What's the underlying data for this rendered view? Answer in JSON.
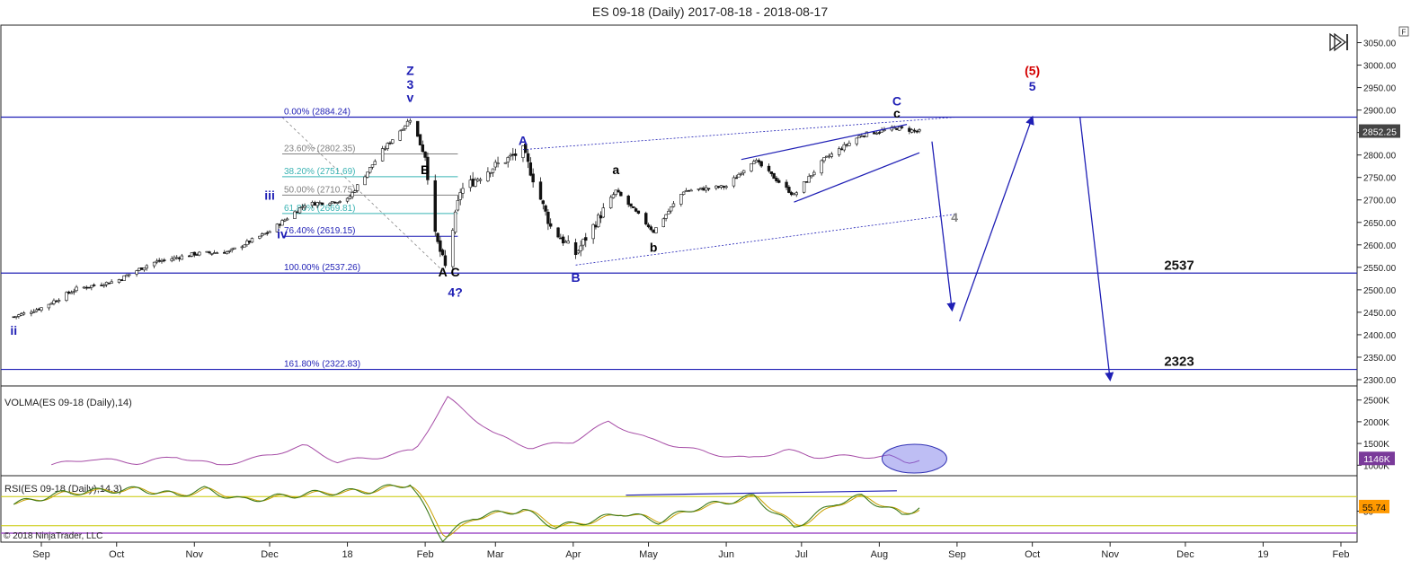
{
  "title": "ES 09-18 (Daily)  2017-08-18 - 2018-08-17",
  "copyright": "© 2018 NinjaTrader, LLC",
  "f_button": "F",
  "colors": {
    "wave_blue": "#1f1fb5",
    "red": "#d40000",
    "fib_teal": "#39b3b3",
    "volma": "#a64ca6",
    "rsi_green": "#3d7a1a",
    "rsi_gold": "#c8a000",
    "current_price_bg": "#444444",
    "rsi_value_bg": "#ff9900"
  },
  "chart_data": [
    {
      "type": "line",
      "name": "price",
      "title": "ES 09-18 (Daily)  2017-08-18 - 2018-08-17",
      "x_ticks": [
        "Sep",
        "Oct",
        "Nov",
        "Dec",
        "18",
        "Feb",
        "Mar",
        "Apr",
        "May",
        "Jun",
        "Jul",
        "Aug",
        "Sep",
        "Oct",
        "Nov",
        "Dec",
        "19",
        "Feb"
      ],
      "y_ticks": [
        2300,
        2350,
        2400,
        2450,
        2500,
        2550,
        2600,
        2650,
        2700,
        2750,
        2800,
        2850,
        2900,
        2950,
        3000,
        3050
      ],
      "ylim": [
        2290,
        3085
      ],
      "current_price": "2852.25",
      "anchors": [
        {
          "x": "2017-08-21",
          "y": 2440
        },
        {
          "x": "2017-09-01",
          "y": 2460
        },
        {
          "x": "2017-09-15",
          "y": 2502
        },
        {
          "x": "2017-10-01",
          "y": 2520
        },
        {
          "x": "2017-10-15",
          "y": 2560
        },
        {
          "x": "2017-11-01",
          "y": 2580
        },
        {
          "x": "2017-11-15",
          "y": 2585
        },
        {
          "x": "2017-12-01",
          "y": 2630
        },
        {
          "x": "2017-12-15",
          "y": 2690
        },
        {
          "x": "2018-01-01",
          "y": 2700
        },
        {
          "x": "2018-01-15",
          "y": 2810
        },
        {
          "x": "2018-01-26",
          "y": 2880
        },
        {
          "x": "2018-02-01",
          "y": 2800
        },
        {
          "x": "2018-02-05",
          "y": 2620
        },
        {
          "x": "2018-02-09",
          "y": 2550
        },
        {
          "x": "2018-02-15",
          "y": 2720
        },
        {
          "x": "2018-02-27",
          "y": 2770
        },
        {
          "x": "2018-03-12",
          "y": 2810
        },
        {
          "x": "2018-03-23",
          "y": 2640
        },
        {
          "x": "2018-04-02",
          "y": 2580
        },
        {
          "x": "2018-04-18",
          "y": 2720
        },
        {
          "x": "2018-05-03",
          "y": 2630
        },
        {
          "x": "2018-05-15",
          "y": 2720
        },
        {
          "x": "2018-06-01",
          "y": 2730
        },
        {
          "x": "2018-06-12",
          "y": 2790
        },
        {
          "x": "2018-06-28",
          "y": 2710
        },
        {
          "x": "2018-07-10",
          "y": 2790
        },
        {
          "x": "2018-07-25",
          "y": 2845
        },
        {
          "x": "2018-08-08",
          "y": 2860
        },
        {
          "x": "2018-08-17",
          "y": 2852
        }
      ],
      "fib_levels": [
        {
          "label": "0.00% (2884.24)",
          "price": 2884.24,
          "color": "#1f1fb5"
        },
        {
          "label": "23.60% (2802.35)",
          "price": 2802.35,
          "color": "#808080"
        },
        {
          "label": "38.20% (2751.69)",
          "price": 2751.69,
          "color": "#39b3b3"
        },
        {
          "label": "50.00% (2710.75)",
          "price": 2710.75,
          "color": "#808080"
        },
        {
          "label": "61.80% (2669.81)",
          "price": 2669.81,
          "color": "#39b3b3"
        },
        {
          "label": "76.40% (2619.15)",
          "price": 2619.15,
          "color": "#1f1fb5"
        },
        {
          "label": "100.00% (2537.26)",
          "price": 2537.26,
          "color": "#1f1fb5"
        },
        {
          "label": "161.80% (2322.83)",
          "price": 2322.83,
          "color": "#1f1fb5"
        }
      ],
      "levels": [
        {
          "label": "2537",
          "price": 2537
        },
        {
          "label": "2323",
          "price": 2323
        }
      ],
      "wave_labels": [
        {
          "text": "ii",
          "x": "2017-08-21",
          "y": 2400,
          "color": "#1f1fb5"
        },
        {
          "text": "iii",
          "x": "2017-12-01",
          "y": 2700,
          "color": "#1f1fb5"
        },
        {
          "text": "iv",
          "x": "2017-12-06",
          "y": 2615,
          "color": "#1f1fb5"
        },
        {
          "text": "Z",
          "x": "2018-01-26",
          "y": 2978,
          "color": "#1f1fb5"
        },
        {
          "text": "3",
          "x": "2018-01-26",
          "y": 2947,
          "color": "#1f1fb5"
        },
        {
          "text": "v",
          "x": "2018-01-26",
          "y": 2918,
          "color": "#1f1fb5"
        },
        {
          "text": "B",
          "x": "2018-02-01",
          "y": 2757,
          "color": "#000000"
        },
        {
          "text": "A",
          "x": "2018-02-08",
          "y": 2530,
          "color": "#000000"
        },
        {
          "text": "C",
          "x": "2018-02-13",
          "y": 2530,
          "color": "#000000"
        },
        {
          "text": "4?",
          "x": "2018-02-13",
          "y": 2485,
          "color": "#1f1fb5"
        },
        {
          "text": "A",
          "x": "2018-03-12",
          "y": 2822,
          "color": "#1f1fb5"
        },
        {
          "text": "a",
          "x": "2018-04-18",
          "y": 2757,
          "color": "#000000"
        },
        {
          "text": "B",
          "x": "2018-04-02",
          "y": 2518,
          "color": "#1f1fb5"
        },
        {
          "text": "b",
          "x": "2018-05-03",
          "y": 2585,
          "color": "#000000"
        },
        {
          "text": "C",
          "x": "2018-08-08",
          "y": 2910,
          "color": "#1f1fb5"
        },
        {
          "text": "c",
          "x": "2018-08-08",
          "y": 2883,
          "color": "#000000"
        },
        {
          "text": "4",
          "x": "2018-08-31",
          "y": 2652,
          "color": "#808080"
        },
        {
          "text": "(5)",
          "x": "2018-10-01",
          "y": 2978,
          "color": "#d40000"
        },
        {
          "text": "5",
          "x": "2018-10-01",
          "y": 2943,
          "color": "#1f1fb5"
        }
      ]
    },
    {
      "type": "line",
      "name": "VOLMA(ES 09-18 (Daily),14)",
      "title": "VOLMA(ES 09-18 (Daily),14)",
      "y_ticks": [
        "1000K",
        "1500K",
        "2000K",
        "2500K"
      ],
      "ylim_k": [
        800,
        2700
      ],
      "current_value": "1146K",
      "anchors_k": [
        {
          "x": "2017-09-05",
          "y": 1000
        },
        {
          "x": "2017-09-20",
          "y": 1150
        },
        {
          "x": "2017-10-10",
          "y": 1050
        },
        {
          "x": "2017-10-25",
          "y": 1200
        },
        {
          "x": "2017-11-10",
          "y": 1000
        },
        {
          "x": "2017-11-25",
          "y": 1150
        },
        {
          "x": "2017-12-05",
          "y": 1300
        },
        {
          "x": "2017-12-15",
          "y": 1450
        },
        {
          "x": "2017-12-28",
          "y": 1080
        },
        {
          "x": "2018-01-15",
          "y": 1200
        },
        {
          "x": "2018-01-28",
          "y": 1350
        },
        {
          "x": "2018-02-10",
          "y": 2550
        },
        {
          "x": "2018-03-01",
          "y": 1700
        },
        {
          "x": "2018-03-15",
          "y": 1400
        },
        {
          "x": "2018-04-01",
          "y": 1550
        },
        {
          "x": "2018-04-15",
          "y": 2000
        },
        {
          "x": "2018-05-01",
          "y": 1600
        },
        {
          "x": "2018-05-25",
          "y": 1280
        },
        {
          "x": "2018-06-10",
          "y": 1150
        },
        {
          "x": "2018-06-25",
          "y": 1350
        },
        {
          "x": "2018-07-05",
          "y": 1200
        },
        {
          "x": "2018-07-25",
          "y": 1200
        },
        {
          "x": "2018-08-05",
          "y": 1200
        },
        {
          "x": "2018-08-12",
          "y": 1050
        },
        {
          "x": "2018-08-17",
          "y": 1146
        }
      ]
    },
    {
      "type": "line",
      "name": "RSI(ES 09-18 (Daily),14,3)",
      "title": "RSI(ES 09-18 (Daily),14,3)",
      "y_ticks": [
        "50"
      ],
      "ylim": [
        10,
        95
      ],
      "current_value": "55.74",
      "anchors": [
        {
          "x": "2017-08-21",
          "y": 60
        },
        {
          "x": "2017-09-10",
          "y": 75
        },
        {
          "x": "2017-09-25",
          "y": 78
        },
        {
          "x": "2017-10-10",
          "y": 80
        },
        {
          "x": "2017-10-25",
          "y": 72
        },
        {
          "x": "2017-11-05",
          "y": 80
        },
        {
          "x": "2017-11-20",
          "y": 65
        },
        {
          "x": "2017-12-05",
          "y": 70
        },
        {
          "x": "2017-12-20",
          "y": 75
        },
        {
          "x": "2018-01-10",
          "y": 78
        },
        {
          "x": "2018-01-26",
          "y": 88
        },
        {
          "x": "2018-02-08",
          "y": 12
        },
        {
          "x": "2018-02-20",
          "y": 42
        },
        {
          "x": "2018-03-12",
          "y": 52
        },
        {
          "x": "2018-03-25",
          "y": 28
        },
        {
          "x": "2018-04-10",
          "y": 38
        },
        {
          "x": "2018-04-20",
          "y": 48
        },
        {
          "x": "2018-05-05",
          "y": 36
        },
        {
          "x": "2018-05-20",
          "y": 55
        },
        {
          "x": "2018-06-12",
          "y": 70
        },
        {
          "x": "2018-06-28",
          "y": 28
        },
        {
          "x": "2018-07-15",
          "y": 62
        },
        {
          "x": "2018-07-25",
          "y": 70
        },
        {
          "x": "2018-08-10",
          "y": 45
        },
        {
          "x": "2018-08-17",
          "y": 55.74
        }
      ]
    }
  ]
}
